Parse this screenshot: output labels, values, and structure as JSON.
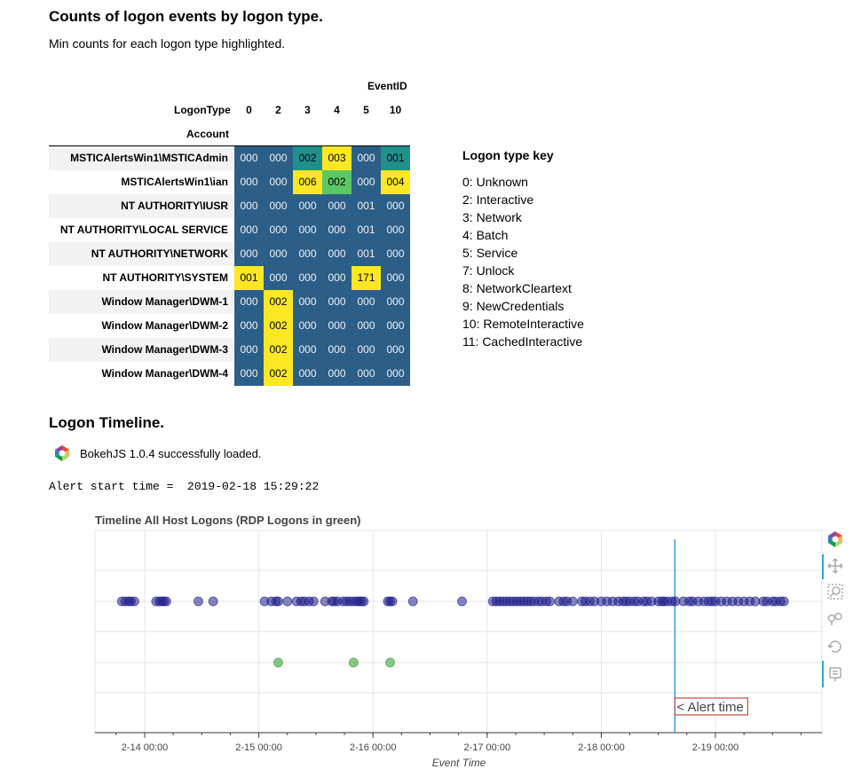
{
  "heading1": "Counts of logon events by logon type.",
  "subheading1": "Min counts for each logon type highlighted.",
  "table": {
    "eventid_label": "EventID",
    "logontype_label": "LogonType",
    "account_label": "Account",
    "columns": [
      "0",
      "2",
      "3",
      "4",
      "5",
      "10"
    ],
    "rows": [
      {
        "account": "MSTICAlertsWin1\\MSTICAdmin",
        "values": [
          "000",
          "000",
          "002",
          "003",
          "000",
          "001"
        ],
        "colors": [
          "#2c5f88",
          "#2c5f88",
          "#21908c",
          "#fde725",
          "#2c5f88",
          "#21908c"
        ]
      },
      {
        "account": "MSTICAlertsWin1\\ian",
        "values": [
          "000",
          "000",
          "006",
          "002",
          "000",
          "004"
        ],
        "colors": [
          "#2c5f88",
          "#2c5f88",
          "#fde725",
          "#5cc863",
          "#2c5f88",
          "#fde725"
        ]
      },
      {
        "account": "NT AUTHORITY\\IUSR",
        "values": [
          "000",
          "000",
          "000",
          "000",
          "001",
          "000"
        ],
        "colors": [
          "#2c5f88",
          "#2c5f88",
          "#2c5f88",
          "#2c5f88",
          "#2c5f88",
          "#2c5f88"
        ]
      },
      {
        "account": "NT AUTHORITY\\LOCAL SERVICE",
        "values": [
          "000",
          "000",
          "000",
          "000",
          "001",
          "000"
        ],
        "colors": [
          "#2c5f88",
          "#2c5f88",
          "#2c5f88",
          "#2c5f88",
          "#2c5f88",
          "#2c5f88"
        ]
      },
      {
        "account": "NT AUTHORITY\\NETWORK SERVICE",
        "values": [
          "000",
          "000",
          "000",
          "000",
          "001",
          "000"
        ],
        "colors": [
          "#2c5f88",
          "#2c5f88",
          "#2c5f88",
          "#2c5f88",
          "#2c5f88",
          "#2c5f88"
        ]
      },
      {
        "account": "NT AUTHORITY\\SYSTEM",
        "values": [
          "001",
          "000",
          "000",
          "000",
          "171",
          "000"
        ],
        "colors": [
          "#fde725",
          "#2c5f88",
          "#2c5f88",
          "#2c5f88",
          "#fde725",
          "#2c5f88"
        ]
      },
      {
        "account": "Window Manager\\DWM-1",
        "values": [
          "000",
          "002",
          "000",
          "000",
          "000",
          "000"
        ],
        "colors": [
          "#2c5f88",
          "#fde725",
          "#2c5f88",
          "#2c5f88",
          "#2c5f88",
          "#2c5f88"
        ]
      },
      {
        "account": "Window Manager\\DWM-2",
        "values": [
          "000",
          "002",
          "000",
          "000",
          "000",
          "000"
        ],
        "colors": [
          "#2c5f88",
          "#fde725",
          "#2c5f88",
          "#2c5f88",
          "#2c5f88",
          "#2c5f88"
        ]
      },
      {
        "account": "Window Manager\\DWM-3",
        "values": [
          "000",
          "002",
          "000",
          "000",
          "000",
          "000"
        ],
        "colors": [
          "#2c5f88",
          "#fde725",
          "#2c5f88",
          "#2c5f88",
          "#2c5f88",
          "#2c5f88"
        ]
      },
      {
        "account": "Window Manager\\DWM-4",
        "values": [
          "000",
          "002",
          "000",
          "000",
          "000",
          "000"
        ],
        "colors": [
          "#2c5f88",
          "#fde725",
          "#2c5f88",
          "#2c5f88",
          "#2c5f88",
          "#2c5f88"
        ]
      }
    ]
  },
  "key": {
    "title": "Logon type key",
    "items": [
      "0: Unknown",
      "2: Interactive",
      "3: Network",
      "4: Batch",
      "5: Service",
      "7: Unlock",
      "8: NetworkCleartext",
      "9: NewCredentials",
      "10: RemoteInteractive",
      "11: CachedInteractive"
    ]
  },
  "heading2": "Logon Timeline.",
  "bokeh_loaded": "BokehJS 1.0.4 successfully loaded.",
  "alert_line": "Alert start time =  2019-02-18 15:29:22",
  "toolbar": [
    "bokeh-logo-icon",
    "pan-icon",
    "zoom-icon",
    "wheel-zoom-icon",
    "reset-icon",
    "hover-icon"
  ],
  "chart_data": {
    "type": "scatter",
    "title": "Timeline All Host Logons (RDP Logons in green)",
    "xlabel": "Event Time",
    "ylabel": "",
    "x_ticks": [
      "2-14 00:00",
      "2-15 00:00",
      "2-16 00:00",
      "2-17 00:00",
      "2-18 00:00",
      "2-19 00:00"
    ],
    "x_range_days": [
      13.5,
      19.9
    ],
    "alert_marker": {
      "x_day": 18.645,
      "label": "< Alert time"
    },
    "series": [
      {
        "color": "#1f1f8c",
        "x_days": [
          13.8,
          13.83,
          13.86,
          13.88,
          13.91,
          14.1,
          14.13,
          14.15,
          14.17,
          14.19,
          14.47,
          14.6,
          15.05,
          15.11,
          15.15,
          15.17,
          15.25,
          15.33,
          15.37,
          15.4,
          15.44,
          15.48,
          15.58,
          15.64,
          15.66,
          15.69,
          15.74,
          15.77,
          15.8,
          15.83,
          15.86,
          15.88,
          15.9,
          15.92,
          16.13,
          16.15,
          16.17,
          16.35,
          16.78,
          17.05,
          17.08,
          17.11,
          17.14,
          17.17,
          17.2,
          17.23,
          17.26,
          17.29,
          17.32,
          17.35,
          17.38,
          17.41,
          17.45,
          17.48,
          17.52,
          17.55,
          17.63,
          17.67,
          17.7,
          17.75,
          17.83,
          17.86,
          17.9,
          17.94,
          18.0,
          18.05,
          18.1,
          18.15,
          18.19,
          18.22,
          18.25,
          18.29,
          18.32,
          18.37,
          18.4,
          18.44,
          18.5,
          18.53,
          18.55,
          18.58,
          18.62,
          18.65,
          18.72,
          18.77,
          18.8,
          18.85,
          18.9,
          18.94,
          18.97,
          19.0,
          19.05,
          19.1,
          19.15,
          19.2,
          19.25,
          19.3,
          19.35,
          19.42,
          19.45,
          19.5,
          19.53,
          19.57,
          19.6
        ]
      },
      {
        "color": "#2a9a2a",
        "x_days": [
          15.17,
          15.83,
          16.15
        ]
      }
    ]
  }
}
